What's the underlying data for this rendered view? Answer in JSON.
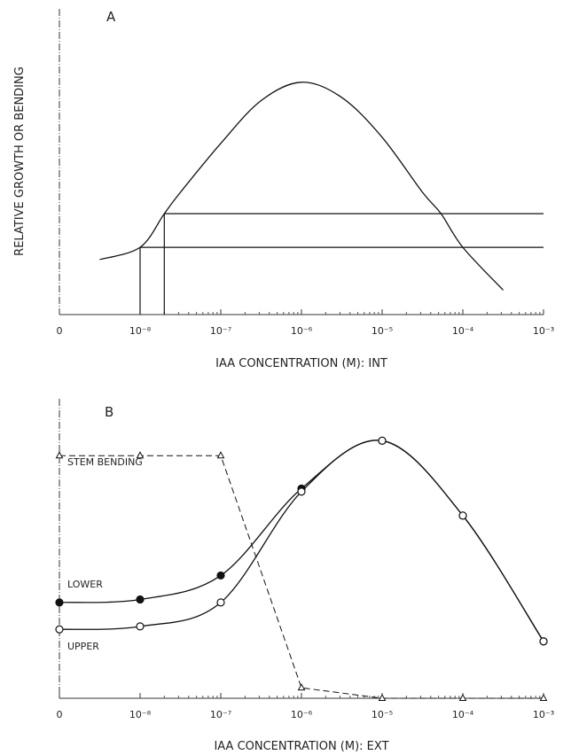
{
  "chart_data": [
    {
      "type": "line",
      "panel_label": "A",
      "ylabel": "RELATIVE GROWTH OR BENDING",
      "xlabel": "IAA CONCENTRATION (M): INT",
      "x": [
        -8.5,
        -8,
        -7.7,
        -7.5,
        -7,
        -6.5,
        -6,
        -5.5,
        -5,
        -4.5,
        -4.27,
        -4,
        -3.5
      ],
      "values": [
        0.18,
        0.22,
        0.33,
        0.4,
        0.56,
        0.7,
        0.76,
        0.71,
        0.58,
        0.4,
        0.33,
        0.22,
        0.08
      ],
      "color": "#111111",
      "reference_lines": [
        {
          "x": -8,
          "y": 0.22
        },
        {
          "x": -7.7,
          "y": 0.33
        }
      ],
      "xlim": [
        -9,
        -3
      ],
      "ylim": [
        0,
        1
      ],
      "xticks": [
        {
          "value": -9,
          "label": "0"
        },
        {
          "value": -8,
          "label": "10⁻⁸"
        },
        {
          "value": -7,
          "label": "10⁻⁷"
        },
        {
          "value": -6,
          "label": "10⁻⁶"
        },
        {
          "value": -5,
          "label": "10⁻⁵"
        },
        {
          "value": -4,
          "label": "10⁻⁴"
        },
        {
          "value": -3,
          "label": "10⁻³"
        }
      ]
    },
    {
      "type": "line",
      "panel_label": "B",
      "xlabel": "IAA CONCENTRATION (M): EXT",
      "categories": [
        "0",
        "10⁻⁸",
        "10⁻⁷",
        "10⁻⁶",
        "10⁻⁵",
        "10⁻⁴",
        "10⁻³"
      ],
      "ylim": [
        0,
        1
      ],
      "series": [
        {
          "name": "STEM BENDING",
          "color": "#111111",
          "marker": "open-triangle",
          "dashed": true,
          "smooth": false,
          "values": [
            0.81,
            0.81,
            0.81,
            0.035,
            0,
            0,
            0
          ]
        },
        {
          "name": "LOWER",
          "color": "#111111",
          "marker": "filled-circle",
          "dashed": false,
          "smooth": true,
          "values": [
            0.32,
            0.33,
            0.41,
            0.7,
            0.86,
            0.61,
            0.19
          ]
        },
        {
          "name": "UPPER",
          "color": "#111111",
          "marker": "open-circle",
          "dashed": false,
          "smooth": true,
          "values": [
            0.23,
            0.24,
            0.32,
            0.69,
            0.86,
            0.61,
            0.19
          ]
        }
      ]
    }
  ]
}
